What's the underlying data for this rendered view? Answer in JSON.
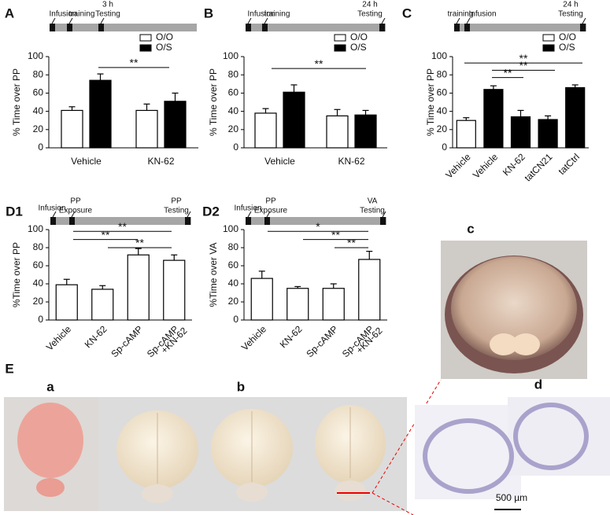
{
  "chart_data": [
    {
      "type": "bar",
      "panel": "A",
      "timeline": [
        "Infusion",
        "training",
        [
          "3 h",
          "Testing"
        ]
      ],
      "ylabel": "% Time over PP",
      "categories": [
        "Vehicle",
        "KN-62"
      ],
      "series": [
        {
          "name": "O/O",
          "color": "#ffffff",
          "values": [
            41,
            41
          ],
          "errors": [
            4,
            7
          ]
        },
        {
          "name": "O/S",
          "color": "#000000",
          "values": [
            74,
            51
          ],
          "errors": [
            7,
            9
          ]
        }
      ],
      "ylim": [
        0,
        100
      ],
      "yticks": [
        0,
        20,
        40,
        60,
        80,
        100
      ],
      "significance": [
        "**"
      ]
    },
    {
      "type": "bar",
      "panel": "B",
      "timeline": [
        "Infusion",
        "training",
        [
          "24 h",
          "Testing"
        ]
      ],
      "ylabel": "% Time over PP",
      "categories": [
        "Vehicle",
        "KN-62"
      ],
      "series": [
        {
          "name": "O/O",
          "color": "#ffffff",
          "values": [
            38,
            35
          ],
          "errors": [
            5,
            7
          ]
        },
        {
          "name": "O/S",
          "color": "#000000",
          "values": [
            61,
            36
          ],
          "errors": [
            8,
            5
          ]
        }
      ],
      "ylim": [
        0,
        100
      ],
      "yticks": [
        0,
        20,
        40,
        60,
        80,
        100
      ],
      "significance": [
        "**"
      ]
    },
    {
      "type": "bar",
      "panel": "C",
      "timeline": [
        "training",
        "Infusion",
        [
          "24 h",
          "Testing"
        ]
      ],
      "ylabel": "% Time over PP",
      "categories": [
        "Vehicle",
        "Vehicle",
        "KN-62",
        "tatCN21",
        "tatCtrl"
      ],
      "series": [
        {
          "name": "O/O",
          "color": "#ffffff",
          "values": [
            30,
            null,
            null,
            null,
            null
          ],
          "errors": [
            3,
            null,
            null,
            null,
            null
          ]
        },
        {
          "name": "O/S",
          "color": "#000000",
          "values": [
            null,
            64,
            34,
            31,
            66
          ],
          "errors": [
            null,
            4,
            7,
            4,
            3
          ]
        }
      ],
      "ylim": [
        0,
        100
      ],
      "yticks": [
        0,
        20,
        40,
        60,
        80,
        100
      ],
      "significance": [
        "**",
        "**",
        "**"
      ]
    },
    {
      "type": "bar",
      "panel": "D1",
      "timeline": [
        "Infusion",
        [
          "PP",
          "Exposure"
        ],
        [
          "PP",
          "Testing"
        ]
      ],
      "ylabel": "%Time over PP",
      "categories": [
        "Vehicle",
        "KN-62",
        "Sp-cAMP",
        [
          "Sp-cAMP",
          "+KN-62"
        ]
      ],
      "values": [
        39,
        34,
        72,
        66
      ],
      "errors": [
        6,
        4,
        7,
        6
      ],
      "color": "#ffffff",
      "ylim": [
        0,
        100
      ],
      "yticks": [
        0,
        20,
        40,
        60,
        80,
        100
      ],
      "significance": [
        "**",
        "**",
        "**"
      ]
    },
    {
      "type": "bar",
      "panel": "D2",
      "timeline": [
        "Infusion",
        [
          "PP",
          "Exposure"
        ],
        [
          "VA",
          "Testing"
        ]
      ],
      "ylabel": "%Time over VA",
      "categories": [
        "Vehicle",
        "KN-62",
        "Sp-cAMP",
        [
          "Sp-cAMP",
          "+KN-62"
        ]
      ],
      "values": [
        46,
        35,
        35,
        67
      ],
      "errors": [
        8,
        2,
        5,
        9
      ],
      "color": "#ffffff",
      "ylim": [
        0,
        100
      ],
      "yticks": [
        0,
        20,
        40,
        60,
        80,
        100
      ],
      "significance": [
        "*",
        "**",
        "**"
      ]
    }
  ],
  "photo_panels": {
    "c": "c",
    "E": "E",
    "a": "a",
    "b": "b",
    "d": "d",
    "scale_bar": "500 µm"
  }
}
